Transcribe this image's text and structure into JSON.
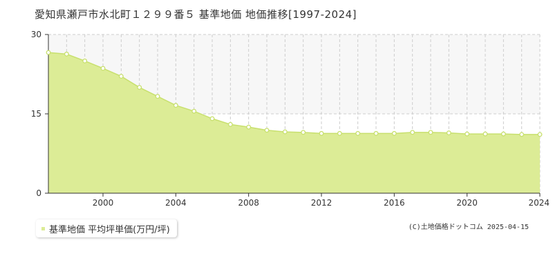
{
  "title": "愛知県瀬戸市水北町１２９９番５ 基準地価 地価推移[1997-2024]",
  "legend_label": "基準地価 平均坪単価(万円/坪)",
  "credit": "(C)土地価格ドットコム 2025-04-15",
  "colors": {
    "fill": "#dcec96",
    "line": "#c8e06e",
    "marker_stroke": "#c8e06e",
    "marker_fill": "#ffffff",
    "grid": "#cccccc",
    "band": "#f7f7f7",
    "axis": "#333333"
  },
  "chart_data": {
    "type": "area",
    "title": "愛知県瀬戸市水北町１２９９番５ 基準地価 地価推移[1997-2024]",
    "xlabel": "",
    "ylabel": "",
    "xlim": [
      1997,
      2024
    ],
    "ylim": [
      0,
      30
    ],
    "yticks": [
      0,
      15,
      30
    ],
    "xticks": [
      2000,
      2004,
      2008,
      2012,
      2016,
      2020,
      2024
    ],
    "grid": true,
    "legend": "bottom-left",
    "series": [
      {
        "name": "基準地価 平均坪単価(万円/坪)",
        "x": [
          1997,
          1998,
          1999,
          2000,
          2001,
          2002,
          2003,
          2004,
          2005,
          2006,
          2007,
          2008,
          2009,
          2010,
          2011,
          2012,
          2013,
          2014,
          2015,
          2016,
          2017,
          2018,
          2019,
          2020,
          2021,
          2022,
          2023,
          2024
        ],
        "y": [
          26.6,
          26.3,
          25.0,
          23.6,
          22.1,
          20.0,
          18.3,
          16.6,
          15.5,
          14.1,
          13.0,
          12.5,
          11.9,
          11.6,
          11.5,
          11.3,
          11.3,
          11.3,
          11.3,
          11.3,
          11.5,
          11.5,
          11.4,
          11.2,
          11.2,
          11.2,
          11.1,
          11.1
        ]
      }
    ]
  }
}
